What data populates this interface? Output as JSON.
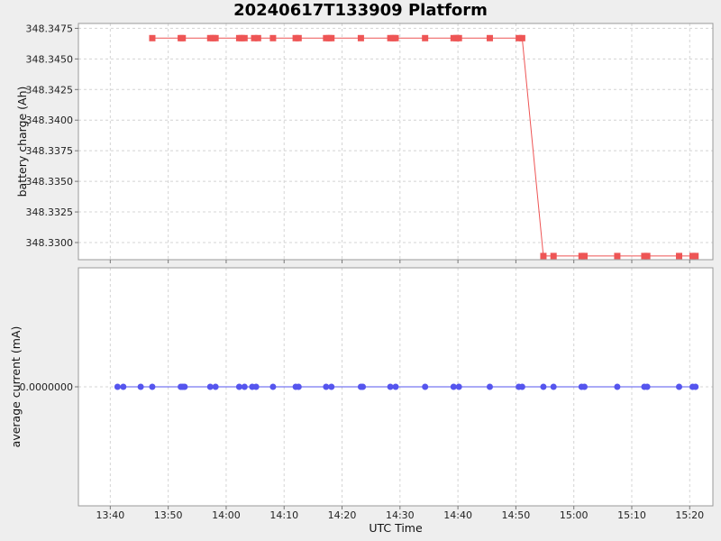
{
  "title": "20240617T133909 Platform",
  "colors": {
    "charge": "#ee5555",
    "current": "#5555ee",
    "grid": "#d4d4d4",
    "frame": "#999999"
  },
  "chart_data": {
    "type": "line",
    "title": "20240617T133909 Platform",
    "xlabel": "UTC Time",
    "x_range": [
      "13:34:30",
      "15:24:00"
    ],
    "x_ticks": [
      "13:40",
      "13:50",
      "14:00",
      "14:10",
      "14:20",
      "14:30",
      "14:40",
      "14:50",
      "15:00",
      "15:10",
      "15:20"
    ],
    "grid": true,
    "panels": [
      {
        "name": "charge",
        "ylabel": "battery charge (Ah)",
        "ylim": [
          348.3286,
          348.3479
        ],
        "y_ticks": [
          "348.3300",
          "348.3325",
          "348.3350",
          "348.3375",
          "348.3400",
          "348.3425",
          "348.3450",
          "348.3475"
        ],
        "marker": "square",
        "series": [
          {
            "x": [
              "13:47:15",
              "13:52:10",
              "13:52:30",
              "13:57:15",
              "13:57:45",
              "13:58:10",
              "14:02:15",
              "14:02:40",
              "14:03:10",
              "14:04:50",
              "14:05:30",
              "14:08:05",
              "14:12:00",
              "14:12:30",
              "14:17:15",
              "14:17:45",
              "14:18:10",
              "14:23:15",
              "14:28:20",
              "14:28:50",
              "14:29:15",
              "14:34:20",
              "14:39:15",
              "14:39:45",
              "14:40:10",
              "14:45:30",
              "14:50:30",
              "14:51:05",
              "14:54:45",
              "14:56:30",
              "15:01:20",
              "15:01:50",
              "15:07:30",
              "15:12:10",
              "15:12:40",
              "15:18:10",
              "15:20:30",
              "15:21:00"
            ],
            "y": [
              348.3467,
              348.3467,
              348.3467,
              348.3467,
              348.3467,
              348.3467,
              348.3467,
              348.3467,
              348.3467,
              348.3467,
              348.3467,
              348.3467,
              348.3467,
              348.3467,
              348.3467,
              348.3467,
              348.3467,
              348.3467,
              348.3467,
              348.3467,
              348.3467,
              348.3467,
              348.3467,
              348.3467,
              348.3467,
              348.3467,
              348.3467,
              348.3467,
              348.3289,
              348.3289,
              348.3289,
              348.3289,
              348.3289,
              348.3289,
              348.3289,
              348.3289,
              348.3289,
              348.3289
            ]
          }
        ]
      },
      {
        "name": "current",
        "ylabel": "average current (mA)",
        "ylim": [
          -1,
          1
        ],
        "y_ticks": [
          "0.0000000"
        ],
        "marker": "circle",
        "series": [
          {
            "x": [
              "13:41:15",
              "13:42:15",
              "13:45:15",
              "13:47:15",
              "13:52:10",
              "13:52:30",
              "13:52:50",
              "13:57:15",
              "13:58:10",
              "14:02:15",
              "14:03:10",
              "14:04:30",
              "14:05:10",
              "14:08:05",
              "14:12:00",
              "14:12:30",
              "14:17:15",
              "14:18:10",
              "14:23:15",
              "14:23:35",
              "14:28:20",
              "14:29:15",
              "14:34:20",
              "14:39:15",
              "14:40:10",
              "14:45:30",
              "14:50:30",
              "14:51:05",
              "14:54:45",
              "14:56:30",
              "15:01:20",
              "15:01:50",
              "15:07:30",
              "15:12:10",
              "15:12:40",
              "15:18:10",
              "15:20:30",
              "15:21:00"
            ],
            "y": [
              0,
              0,
              0,
              0,
              0,
              0,
              0,
              0,
              0,
              0,
              0,
              0,
              0,
              0,
              0,
              0,
              0,
              0,
              0,
              0,
              0,
              0,
              0,
              0,
              0,
              0,
              0,
              0,
              0,
              0,
              0,
              0,
              0,
              0,
              0,
              0,
              0,
              0
            ]
          }
        ]
      }
    ]
  }
}
